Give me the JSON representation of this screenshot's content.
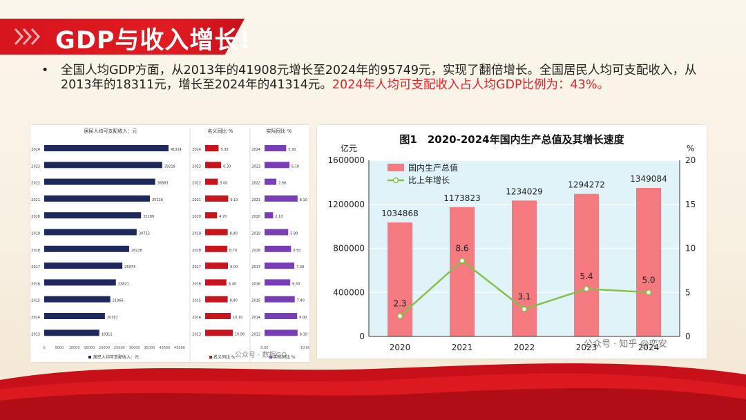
{
  "title": "GDP与收入增长!",
  "bullet": {
    "normal": "全国人均GDP方面，从2013年的41908元增长至2024年的95749元，实现了翻倍增长。全国居民人均可支配收入，从2013年的18311元，增长至2024年的41314元。",
    "highlight": "2024年人均可支配收入占人均GDP比例为：43%。"
  },
  "colors": {
    "red_banner": "#e11b22",
    "navy": "#1f2a5c",
    "crimson": "#c8141c",
    "purple": "#7a3db8",
    "pink_bar": "#f47a80",
    "green_line": "#86c04a"
  },
  "watermark_left": "公众号 · 数据GO",
  "watermark_right": "公众号 · 知乎 @奕安",
  "chart_data": [
    {
      "type": "bar",
      "title": "居民人均可支配收入：元",
      "categories": [
        "2024",
        "2023",
        "2022",
        "2021",
        "2020",
        "2019",
        "2018",
        "2017",
        "2016",
        "2015",
        "2014",
        "2013"
      ],
      "series": [
        {
          "name": "居民人均可支配收入：元",
          "values": [
            41314,
            39218,
            36883,
            35128,
            32189,
            30733,
            28228,
            25974,
            23821,
            21966,
            20167,
            18311
          ]
        }
      ],
      "xticks": [
        "0",
        "5000",
        "10000",
        "15000",
        "20000",
        "25000",
        "30000",
        "35000",
        "40000",
        "45000"
      ],
      "xlim": [
        0,
        45000
      ],
      "legend": "居民人均可支配收入：元"
    },
    {
      "type": "bar",
      "title": "名义同比 %",
      "categories": [
        "2024",
        "2023",
        "2022",
        "2021",
        "2020",
        "2019",
        "2018",
        "2017",
        "2016",
        "2015",
        "2014",
        "2013"
      ],
      "series": [
        {
          "name": "名义同比",
          "values": [
            5.3,
            6.3,
            5.0,
            9.1,
            4.7,
            8.9,
            8.7,
            9.0,
            8.4,
            8.9,
            10.1,
            10.9
          ]
        }
      ],
      "labels": [
        "5.30",
        "6.30",
        "5.00",
        "9.10",
        "4.70",
        "8.90",
        "8.70",
        "9.00",
        "8.40",
        "8.90",
        "10.10",
        "10.90"
      ],
      "xlim": [
        0,
        15
      ],
      "legend": "名义同比 %"
    },
    {
      "type": "bar",
      "title": "实际同比 %",
      "categories": [
        "2024",
        "2023",
        "2022",
        "2021",
        "2020",
        "2019",
        "2018",
        "2017",
        "2016",
        "2015",
        "2014",
        "2013"
      ],
      "series": [
        {
          "name": "实际同比",
          "values": [
            5.3,
            6.1,
            2.9,
            8.1,
            2.1,
            5.8,
            6.5,
            7.3,
            6.3,
            7.4,
            8.0,
            8.1
          ]
        }
      ],
      "labels": [
        "5.30",
        "6.10",
        "2.90",
        "8.10",
        "2.10",
        "5.80",
        "6.50",
        "7.30",
        "6.30",
        "7.40",
        "8.00",
        "8.10"
      ],
      "xticks": [
        "0.00",
        "10.00"
      ],
      "xlim": [
        0,
        10
      ],
      "legend": "实际同比 %"
    },
    {
      "type": "bar",
      "title": "图1　2020-2024年国内生产总值及其增长速度",
      "ylabel": "亿元",
      "y2label": "%",
      "categories": [
        "2020",
        "2021",
        "2022",
        "2023",
        "2024"
      ],
      "series": [
        {
          "name": "国内生产总值",
          "type": "bar",
          "values": [
            1034868,
            1173823,
            1234029,
            1294272,
            1349084
          ]
        },
        {
          "name": "比上年增长",
          "type": "line",
          "axis": "right",
          "values": [
            2.3,
            8.6,
            3.1,
            5.4,
            5.0
          ]
        }
      ],
      "bar_labels": [
        "1034868",
        "1173823",
        "1234029",
        "1294272",
        "1349084"
      ],
      "line_labels": [
        "2.3",
        "8.6",
        "3.1",
        "5.4",
        "5.0"
      ],
      "ylim": [
        0,
        1600000
      ],
      "y2lim": [
        0,
        20
      ],
      "yticks": [
        "0",
        "400000",
        "800000",
        "1200000",
        "1600000"
      ],
      "y2ticks": [
        "0",
        "5",
        "10",
        "15",
        "20"
      ],
      "legend": "top-left"
    }
  ]
}
